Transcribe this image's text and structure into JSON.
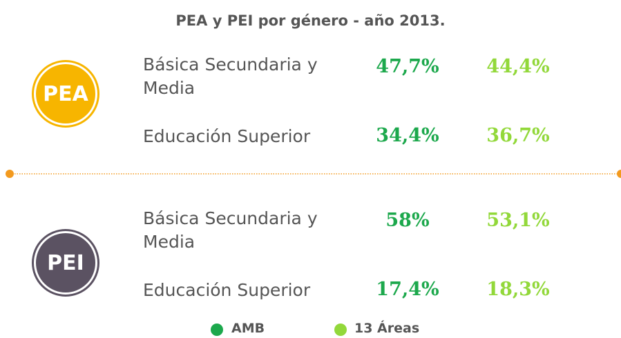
{
  "title": "PEA y PEI por género - año 2013.",
  "groups": [
    {
      "label": "PEA",
      "rows": [
        {
          "label": "Básica Secundaria y Media",
          "values": [
            "47,7%",
            "44,4%"
          ]
        },
        {
          "label": "Educación Superior",
          "values": [
            "34,4%",
            "36,7%"
          ]
        }
      ]
    },
    {
      "label": "PEI",
      "rows": [
        {
          "label": "Básica Secundaria y Media",
          "values": [
            "58%",
            "53,1%"
          ]
        },
        {
          "label": "Educación Superior",
          "values": [
            "17,4%",
            "18,3%"
          ]
        }
      ]
    }
  ],
  "legend": [
    "AMB",
    "13 Áreas"
  ]
}
